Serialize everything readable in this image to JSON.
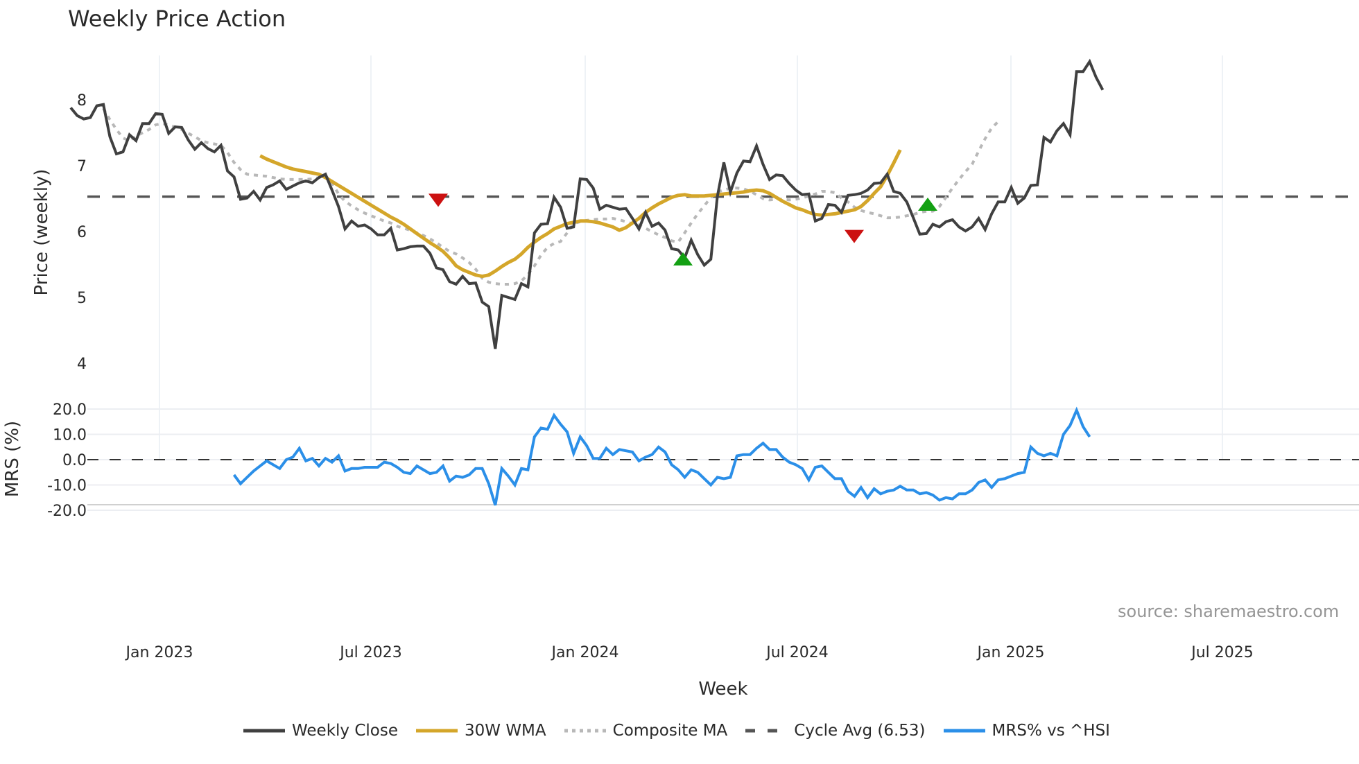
{
  "title": "Weekly Price Action",
  "source_note": "source: sharemaestro.com",
  "legend": [
    {
      "label": "Weekly Close",
      "color": "#404040",
      "style": "solid"
    },
    {
      "label": "30W WMA",
      "color": "#d4a62a",
      "style": "solid"
    },
    {
      "label": "Composite MA",
      "color": "#b8b8b8",
      "style": "dotted"
    },
    {
      "label": "Cycle Avg (6.53)",
      "color": "#555555",
      "style": "dashed"
    },
    {
      "label": "MRS% vs ^HSI",
      "color": "#2b8fe8",
      "style": "solid"
    }
  ],
  "chart_data": [
    {
      "type": "line",
      "title": "Weekly Price Action",
      "xlabel": "Week",
      "ylabel": "Price (weekly)",
      "ylim": [
        4,
        8.8
      ],
      "yticks": [
        4,
        5,
        6,
        7,
        8
      ],
      "xticks": [
        "Jan 2023",
        "Jul 2023",
        "Jan 2024",
        "Jul 2024",
        "Jan 2025",
        "Jul 2025"
      ],
      "grid": "vertical",
      "x_start": "2022-11-14",
      "x_step": "1 week",
      "cycle_avg": 6.53,
      "series": [
        {
          "name": "Weekly Close",
          "values": [
            7.88,
            7.76,
            7.71,
            7.73,
            7.91,
            7.93,
            7.44,
            7.18,
            7.21,
            7.47,
            7.38,
            7.64,
            7.64,
            7.79,
            7.78,
            7.49,
            7.59,
            7.58,
            7.39,
            7.25,
            7.35,
            7.26,
            7.21,
            7.31,
            6.92,
            6.83,
            6.49,
            6.51,
            6.61,
            6.48,
            6.67,
            6.71,
            6.77,
            6.64,
            6.69,
            6.74,
            6.77,
            6.74,
            6.82,
            6.87,
            6.63,
            6.38,
            6.04,
            6.16,
            6.08,
            6.1,
            6.04,
            5.95,
            5.95,
            6.05,
            5.72,
            5.74,
            5.77,
            5.78,
            5.78,
            5.67,
            5.45,
            5.42,
            5.24,
            5.2,
            5.32,
            5.21,
            5.22,
            4.93,
            4.86,
            4.22,
            5.03,
            5.0,
            4.97,
            5.21,
            5.16,
            5.98,
            6.11,
            6.12,
            6.52,
            6.37,
            6.05,
            6.07,
            6.8,
            6.79,
            6.66,
            6.34,
            6.4,
            6.37,
            6.34,
            6.35,
            6.2,
            6.04,
            6.29,
            6.08,
            6.13,
            6.02,
            5.74,
            5.72,
            5.6,
            5.87,
            5.65,
            5.49,
            5.58,
            6.53,
            7.05,
            6.6,
            6.89,
            7.07,
            7.06,
            7.3,
            7.02,
            6.79,
            6.86,
            6.85,
            6.73,
            6.63,
            6.56,
            6.57,
            6.16,
            6.2,
            6.41,
            6.4,
            6.29,
            6.55,
            6.56,
            6.58,
            6.63,
            6.73,
            6.74,
            6.87,
            6.61,
            6.58,
            6.45,
            6.21,
            5.96,
            5.97,
            6.11,
            6.07,
            6.15,
            6.18,
            6.07,
            6.01,
            6.07,
            6.2,
            6.03,
            6.27,
            6.45,
            6.45,
            6.67,
            6.43,
            6.51,
            6.7,
            6.71,
            7.43,
            7.36,
            7.53,
            7.64,
            7.47,
            8.43,
            8.43,
            8.58,
            8.34,
            8.15
          ]
        },
        {
          "name": "30W WMA",
          "start_index": 29,
          "values": [
            7.15,
            7.1,
            7.06,
            7.02,
            6.98,
            6.95,
            6.93,
            6.91,
            6.89,
            6.87,
            6.82,
            6.76,
            6.7,
            6.64,
            6.58,
            6.52,
            6.46,
            6.4,
            6.34,
            6.28,
            6.22,
            6.17,
            6.11,
            6.04,
            5.97,
            5.9,
            5.83,
            5.77,
            5.7,
            5.6,
            5.48,
            5.42,
            5.38,
            5.34,
            5.32,
            5.34,
            5.4,
            5.47,
            5.53,
            5.58,
            5.66,
            5.76,
            5.84,
            5.91,
            5.97,
            6.04,
            6.08,
            6.12,
            6.14,
            6.16,
            6.16,
            6.15,
            6.13,
            6.1,
            6.07,
            6.02,
            6.06,
            6.13,
            6.2,
            6.29,
            6.36,
            6.42,
            6.47,
            6.52,
            6.55,
            6.56,
            6.54,
            6.54,
            6.54,
            6.55,
            6.56,
            6.57,
            6.58,
            6.59,
            6.6,
            6.62,
            6.63,
            6.62,
            6.58,
            6.52,
            6.46,
            6.41,
            6.36,
            6.33,
            6.29,
            6.26,
            6.25,
            6.26,
            6.27,
            6.29,
            6.31,
            6.33,
            6.38,
            6.47,
            6.58,
            6.68,
            6.85,
            7.04,
            7.24
          ]
        },
        {
          "name": "Composite MA",
          "values": [
            null,
            null,
            null,
            null,
            null,
            7.87,
            7.7,
            7.55,
            7.42,
            7.38,
            7.45,
            7.5,
            7.55,
            7.62,
            7.64,
            7.62,
            7.59,
            7.55,
            7.49,
            7.44,
            7.38,
            7.35,
            7.33,
            7.31,
            7.2,
            7.05,
            6.94,
            6.87,
            6.86,
            6.85,
            6.84,
            6.82,
            6.8,
            6.79,
            6.79,
            6.79,
            6.79,
            6.8,
            6.82,
            6.85,
            6.74,
            6.57,
            6.46,
            6.39,
            6.33,
            6.28,
            6.24,
            6.2,
            6.16,
            6.13,
            6.08,
            6.05,
            6.02,
            5.98,
            5.94,
            5.89,
            5.83,
            5.76,
            5.7,
            5.66,
            5.6,
            5.53,
            5.43,
            5.29,
            5.23,
            5.21,
            5.2,
            5.2,
            5.21,
            5.25,
            5.35,
            5.48,
            5.64,
            5.76,
            5.82,
            5.85,
            5.98,
            6.12,
            6.15,
            6.17,
            6.18,
            6.19,
            6.19,
            6.2,
            6.18,
            6.15,
            6.12,
            6.1,
            6.05,
            6.0,
            5.95,
            5.91,
            5.86,
            5.84,
            5.98,
            6.13,
            6.27,
            6.39,
            6.52,
            6.6,
            6.63,
            6.66,
            6.66,
            6.65,
            6.61,
            6.56,
            6.5,
            6.48,
            6.49,
            6.49,
            6.48,
            6.49,
            6.51,
            6.54,
            6.57,
            6.61,
            6.61,
            6.59,
            6.51,
            6.45,
            6.37,
            6.32,
            6.29,
            6.27,
            6.24,
            6.21,
            6.21,
            6.22,
            6.24,
            6.26,
            6.29,
            6.31,
            6.31,
            6.38,
            6.52,
            6.66,
            6.79,
            6.91,
            7.02,
            7.22,
            7.41,
            7.57,
            7.67
          ]
        }
      ],
      "markers": [
        {
          "type": "sell",
          "shape": "triangle-down",
          "color": "#cc1111",
          "date": "Sep 2023",
          "value": 6.48
        },
        {
          "type": "buy",
          "shape": "triangle-up",
          "color": "#13a013",
          "date": "Apr 2024",
          "value": 5.58
        },
        {
          "type": "sell",
          "shape": "triangle-down",
          "color": "#cc1111",
          "date": "Sep 2024",
          "value": 5.93
        },
        {
          "type": "buy",
          "shape": "triangle-up",
          "color": "#13a013",
          "date": "Nov 2024",
          "value": 6.41
        }
      ]
    },
    {
      "type": "line",
      "title": "",
      "xlabel": "Week",
      "ylabel": "MRS (%)",
      "ylim": [
        -20,
        22
      ],
      "yticks": [
        "-20.0",
        "-10.0",
        "0.0",
        "10.0",
        "20.0"
      ],
      "reference_line": 0,
      "series": [
        {
          "name": "MRS% vs ^HSI",
          "start_index": 25,
          "values": [
            -6.0,
            -9.5,
            -7.0,
            -4.5,
            -2.5,
            -0.5,
            -2.0,
            -3.5,
            0.0,
            1.0,
            4.5,
            -0.5,
            0.5,
            -2.5,
            0.5,
            -1.0,
            1.5,
            -4.5,
            -3.5,
            -3.5,
            -3.0,
            -3.0,
            -3.0,
            -1.0,
            -1.5,
            -3.0,
            -5.0,
            -5.5,
            -2.5,
            -4.0,
            -5.5,
            -5.0,
            -2.5,
            -8.5,
            -6.5,
            -7.0,
            -6.0,
            -3.5,
            -3.5,
            -9.5,
            -18.0,
            -3.5,
            -6.5,
            -10.0,
            -3.5,
            -4.0,
            9.0,
            12.5,
            12.0,
            17.5,
            14.0,
            11.0,
            2.5,
            9.0,
            5.5,
            0.5,
            0.5,
            4.5,
            2.0,
            4.0,
            3.5,
            3.0,
            -0.5,
            1.0,
            2.0,
            5.0,
            3.0,
            -2.0,
            -4.0,
            -7.0,
            -4.0,
            -5.0,
            -7.5,
            -10.0,
            -7.0,
            -7.5,
            -7.0,
            1.5,
            2.0,
            2.0,
            4.5,
            6.5,
            4.0,
            4.0,
            1.0,
            -1.0,
            -2.0,
            -3.5,
            -8.0,
            -3.0,
            -2.5,
            -5.0,
            -7.5,
            -7.5,
            -12.5,
            -14.5,
            -11.0,
            -15.0,
            -11.5,
            -13.5,
            -12.5,
            -12.0,
            -10.5,
            -12.0,
            -12.0,
            -13.5,
            -13.0,
            -14.0,
            -16.0,
            -15.0,
            -15.5,
            -13.5,
            -13.5,
            -12.0,
            -9.0,
            -8.0,
            -11.0,
            -8.0,
            -7.5,
            -6.5,
            -5.5,
            -5.0,
            5.0,
            2.5,
            1.5,
            2.5,
            1.5,
            10.0,
            13.5,
            19.5,
            13.0,
            9.0
          ]
        }
      ]
    }
  ]
}
